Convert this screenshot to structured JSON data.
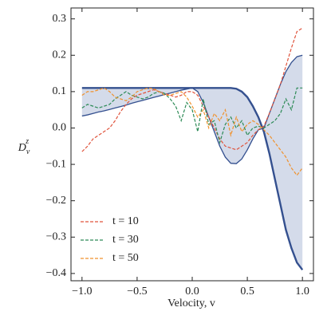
{
  "chart_data": {
    "type": "line",
    "xlabel": "Velocity, v",
    "ylabel": {
      "base": "D",
      "sub": "v",
      "sup": "z"
    },
    "x": [
      -1.0,
      -0.95,
      -0.9,
      -0.85,
      -0.8,
      -0.75,
      -0.7,
      -0.65,
      -0.6,
      -0.55,
      -0.5,
      -0.45,
      -0.4,
      -0.35,
      -0.3,
      -0.25,
      -0.2,
      -0.15,
      -0.1,
      -0.05,
      0.0,
      0.05,
      0.1,
      0.15,
      0.2,
      0.25,
      0.3,
      0.35,
      0.4,
      0.45,
      0.5,
      0.55,
      0.6,
      0.65,
      0.7,
      0.75,
      0.8,
      0.85,
      0.9,
      0.95,
      1.0
    ],
    "series": [
      {
        "color": "#34508f",
        "width": 2.4,
        "dash": false,
        "values": [
          0.11,
          0.11,
          0.11,
          0.11,
          0.11,
          0.11,
          0.11,
          0.11,
          0.11,
          0.11,
          0.11,
          0.11,
          0.11,
          0.11,
          0.11,
          0.11,
          0.11,
          0.11,
          0.11,
          0.11,
          0.11,
          0.11,
          0.11,
          0.11,
          0.11,
          0.11,
          0.11,
          0.11,
          0.108,
          0.1,
          0.085,
          0.06,
          0.03,
          -0.01,
          -0.07,
          -0.14,
          -0.21,
          -0.28,
          -0.33,
          -0.37,
          -0.39
        ]
      },
      {
        "color": "#34508f",
        "width": 1.3,
        "dash": false,
        "values": [
          0.033,
          0.036,
          0.04,
          0.044,
          0.047,
          0.051,
          0.055,
          0.059,
          0.063,
          0.068,
          0.072,
          0.076,
          0.08,
          0.084,
          0.088,
          0.092,
          0.096,
          0.1,
          0.104,
          0.107,
          0.11,
          0.1,
          0.07,
          0.03,
          -0.01,
          -0.05,
          -0.08,
          -0.097,
          -0.098,
          -0.085,
          -0.06,
          -0.03,
          -0.005,
          0.0,
          0.04,
          0.08,
          0.12,
          0.155,
          0.18,
          0.196,
          0.2
        ]
      },
      {
        "name": "t = 10",
        "color": "#e0533c",
        "width": 1.2,
        "dash": true,
        "values": [
          -0.065,
          -0.05,
          -0.03,
          -0.02,
          -0.01,
          0.0,
          0.02,
          0.045,
          0.065,
          0.08,
          0.09,
          0.095,
          0.1,
          0.105,
          0.1,
          0.095,
          0.09,
          0.085,
          0.09,
          0.1,
          0.1,
          0.09,
          0.06,
          0.03,
          0.0,
          -0.03,
          -0.05,
          -0.055,
          -0.06,
          -0.05,
          -0.04,
          -0.02,
          -0.005,
          0.005,
          0.04,
          0.08,
          0.12,
          0.17,
          0.22,
          0.265,
          0.275
        ]
      },
      {
        "name": "t = 30",
        "color": "#2e8b57",
        "width": 1.2,
        "dash": true,
        "values": [
          0.055,
          0.065,
          0.06,
          0.055,
          0.06,
          0.065,
          0.08,
          0.09,
          0.1,
          0.09,
          0.085,
          0.08,
          0.085,
          0.095,
          0.1,
          0.095,
          0.08,
          0.06,
          0.02,
          0.07,
          0.05,
          -0.01,
          0.08,
          0.01,
          0.02,
          -0.04,
          0.01,
          0.03,
          0.0,
          0.02,
          -0.02,
          0.0,
          0.005,
          0.0,
          0.01,
          0.02,
          0.04,
          0.08,
          0.05,
          0.11,
          0.11
        ]
      },
      {
        "name": "t = 50",
        "color": "#f0922e",
        "width": 1.2,
        "dash": true,
        "values": [
          0.09,
          0.1,
          0.1,
          0.105,
          0.11,
          0.1,
          0.085,
          0.08,
          0.075,
          0.085,
          0.1,
          0.105,
          0.11,
          0.108,
          0.1,
          0.09,
          0.09,
          0.095,
          0.1,
          0.085,
          0.06,
          0.03,
          0.05,
          0.0,
          0.04,
          0.02,
          0.05,
          -0.02,
          0.03,
          -0.01,
          0.01,
          0.02,
          0.01,
          -0.005,
          -0.02,
          -0.04,
          -0.06,
          -0.08,
          -0.11,
          -0.13,
          -0.11
        ]
      }
    ],
    "fill_between": {
      "series": [
        0,
        1
      ],
      "color": "#c9d2e5"
    },
    "xlim": [
      -1.1,
      1.1
    ],
    "ylim": [
      -0.42,
      0.33
    ],
    "xticks": [
      {
        "value": -1.0,
        "label": "−1.0"
      },
      {
        "value": -0.5,
        "label": "−0.5"
      },
      {
        "value": 0.0,
        "label": "0.0"
      },
      0.5,
      {
        "value": 1.0,
        "label": "1.0"
      }
    ],
    "yticks": [
      {
        "value": -0.4,
        "label": "−0.4"
      },
      {
        "value": -0.3,
        "label": "−0.3"
      },
      {
        "value": -0.2,
        "label": "−0.2"
      },
      {
        "value": -0.1,
        "label": "−0.1"
      },
      {
        "value": 0.0,
        "label": "0.0"
      },
      0.1,
      0.2,
      0.3
    ],
    "legend": "lower left",
    "grid": false
  }
}
